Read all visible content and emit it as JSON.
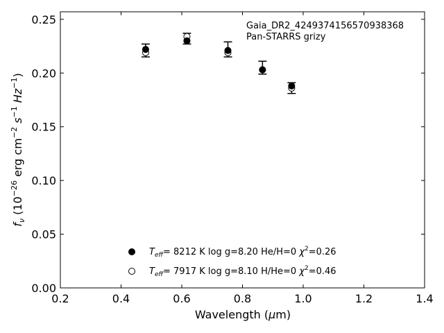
{
  "chart_data": {
    "type": "scatter",
    "annotations": [
      "Gaia_DR2_4249374156570938368",
      "Pan-STARRS grizy"
    ],
    "xlabel": {
      "main": "Wavelength (",
      "mu": "μ",
      "unit": "m)"
    },
    "ylabel": {
      "f": "f",
      "nu": "ν",
      "p1": " (10",
      "e1": "−26",
      "p2": " erg cm",
      "e2": "−2",
      "p3": " s",
      "e3": "−1",
      "p4": " Hz",
      "e4": "−1",
      "p5": ")"
    },
    "xlim": [
      0.2,
      1.4
    ],
    "ylim": [
      0.0,
      0.257
    ],
    "xticks": [
      0.2,
      0.4,
      0.6,
      0.8,
      1.0,
      1.2,
      1.4
    ],
    "xtick_labels": [
      "0.2",
      "0.4",
      "0.6",
      "0.8",
      "1.0",
      "1.2",
      "1.4"
    ],
    "yticks": [
      0.0,
      0.05,
      0.1,
      0.15,
      0.2,
      0.25
    ],
    "ytick_labels": [
      "0.00",
      "0.05",
      "0.10",
      "0.15",
      "0.20",
      "0.25"
    ],
    "grid": false,
    "observed": {
      "x": [
        0.481,
        0.617,
        0.752,
        0.866,
        0.962
      ],
      "y": [
        0.221,
        0.232,
        0.222,
        0.205,
        0.186
      ],
      "err": [
        0.006,
        0.005,
        0.007,
        0.006,
        0.005
      ]
    },
    "series": [
      {
        "marker": "filled",
        "x": [
          0.481,
          0.617,
          0.752,
          0.866,
          0.962
        ],
        "y": [
          0.222,
          0.23,
          0.221,
          0.203,
          0.188
        ],
        "legend": {
          "teff_T": "T",
          "teff_sub": "eff",
          "text": "=  8212 K  log g=8.20  He/H=0  ",
          "chi": "χ",
          "chi_sup": "2",
          "chi_val": "=0.26"
        }
      },
      {
        "marker": "open",
        "x": [
          0.481,
          0.617,
          0.752,
          0.866,
          0.962
        ],
        "y": [
          0.219,
          0.234,
          0.219,
          0.203,
          0.186
        ],
        "legend": {
          "teff_T": "T",
          "teff_sub": "eff",
          "text": "=  7917 K  log g=8.10  H/He=0  ",
          "chi": "χ",
          "chi_sup": "2",
          "chi_val": "=0.46"
        }
      }
    ],
    "legend_position": "lower-center"
  }
}
